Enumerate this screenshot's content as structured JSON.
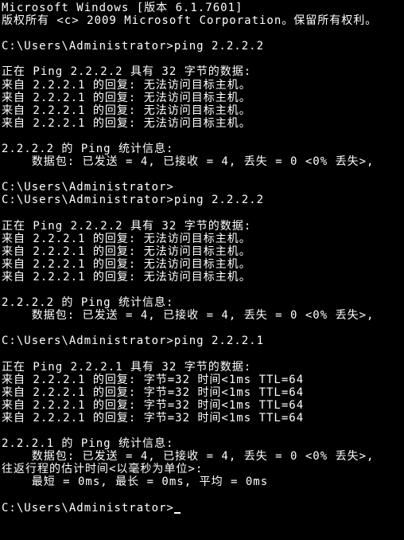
{
  "header": {
    "version_line": "Microsoft Windows [版本 6.1.7601]",
    "copyright_line": "版权所有 <c> 2009 Microsoft Corporation。保留所有权利。"
  },
  "blocks": [
    {
      "prompt": "C:\\Users\\Administrator>",
      "command": "ping 2.2.2.2",
      "blank_after_prompt": true,
      "pinging_line": "正在 Ping 2.2.2.2 具有 32 字节的数据:",
      "replies": [
        "来自 2.2.2.1 的回复: 无法访问目标主机。",
        "来自 2.2.2.1 的回复: 无法访问目标主机。",
        "来自 2.2.2.1 的回复: 无法访问目标主机。",
        "来自 2.2.2.1 的回复: 无法访问目标主机。"
      ],
      "stats_header": "2.2.2.2 的 Ping 统计信息:",
      "stats_packets": "    数据包: 已发送 = 4, 已接收 = 4, 丢失 = 0 <0% 丢失>,",
      "rtt_header": null,
      "rtt_line": null
    },
    {
      "prompt": "C:\\Users\\Administrator>",
      "command": "",
      "blank_after_prompt": false,
      "pinging_line": null,
      "replies": [],
      "stats_header": null,
      "stats_packets": null,
      "rtt_header": null,
      "rtt_line": null
    },
    {
      "prompt": "C:\\Users\\Administrator>",
      "command": "ping 2.2.2.2",
      "blank_after_prompt": true,
      "pinging_line": "正在 Ping 2.2.2.2 具有 32 字节的数据:",
      "replies": [
        "来自 2.2.2.1 的回复: 无法访问目标主机。",
        "来自 2.2.2.1 的回复: 无法访问目标主机。",
        "来自 2.2.2.1 的回复: 无法访问目标主机。",
        "来自 2.2.2.1 的回复: 无法访问目标主机。"
      ],
      "stats_header": "2.2.2.2 的 Ping 统计信息:",
      "stats_packets": "    数据包: 已发送 = 4, 已接收 = 4, 丢失 = 0 <0% 丢失>,",
      "rtt_header": null,
      "rtt_line": null
    },
    {
      "prompt": "C:\\Users\\Administrator>",
      "command": "ping 2.2.2.1",
      "blank_after_prompt": true,
      "pinging_line": "正在 Ping 2.2.2.1 具有 32 字节的数据:",
      "replies": [
        "来自 2.2.2.1 的回复: 字节=32 时间<1ms TTL=64",
        "来自 2.2.2.1 的回复: 字节=32 时间<1ms TTL=64",
        "来自 2.2.2.1 的回复: 字节=32 时间<1ms TTL=64",
        "来自 2.2.2.1 的回复: 字节=32 时间<1ms TTL=64"
      ],
      "stats_header": "2.2.2.1 的 Ping 统计信息:",
      "stats_packets": "    数据包: 已发送 = 4, 已接收 = 4, 丢失 = 0 <0% 丢失>,",
      "rtt_header": "往返行程的估计时间<以毫秒为单位>:",
      "rtt_line": "    最短 = 0ms, 最长 = 0ms, 平均 = 0ms"
    }
  ],
  "final_prompt": "C:\\Users\\Administrator>",
  "colors": {
    "background": "#000000",
    "foreground": "#ffffff"
  }
}
